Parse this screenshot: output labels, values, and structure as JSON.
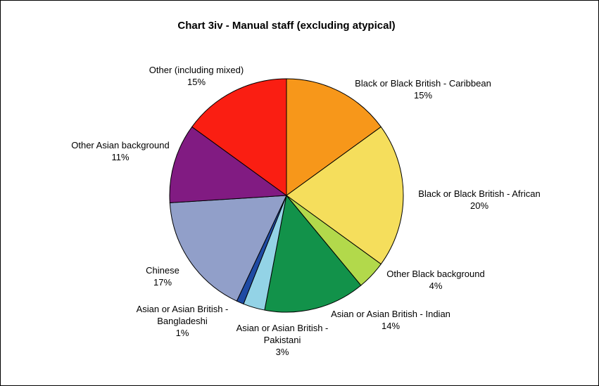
{
  "chart_data": {
    "type": "pie",
    "title": "Chart 3iv - Manual staff (excluding atypical)",
    "slices": [
      {
        "label": [
          "Black or Black British - Caribbean"
        ],
        "value_label": "15%",
        "value": 15,
        "color": "#F7971A"
      },
      {
        "label": [
          "Black or Black British - African"
        ],
        "value_label": "20%",
        "value": 20,
        "color": "#F5DE5C"
      },
      {
        "label": [
          "Other Black background"
        ],
        "value_label": "4%",
        "value": 4,
        "color": "#B2D94B"
      },
      {
        "label": [
          "Asian or Asian British - Indian"
        ],
        "value_label": "14%",
        "value": 14,
        "color": "#12924A"
      },
      {
        "label": [
          "Asian or Asian British -",
          "Pakistani"
        ],
        "value_label": "3%",
        "value": 3,
        "color": "#93D3E6"
      },
      {
        "label": [
          "Asian or Asian British -",
          "Bangladeshi"
        ],
        "value_label": "1%",
        "value": 1,
        "color": "#1F4AA3"
      },
      {
        "label": [
          "Chinese"
        ],
        "value_label": "17%",
        "value": 17,
        "color": "#919FC9"
      },
      {
        "label": [
          "Other Asian background"
        ],
        "value_label": "11%",
        "value": 11,
        "color": "#811B82"
      },
      {
        "label": [
          "Other (including mixed)"
        ],
        "value_label": "15%",
        "value": 15,
        "color": "#FA1E12"
      }
    ]
  }
}
